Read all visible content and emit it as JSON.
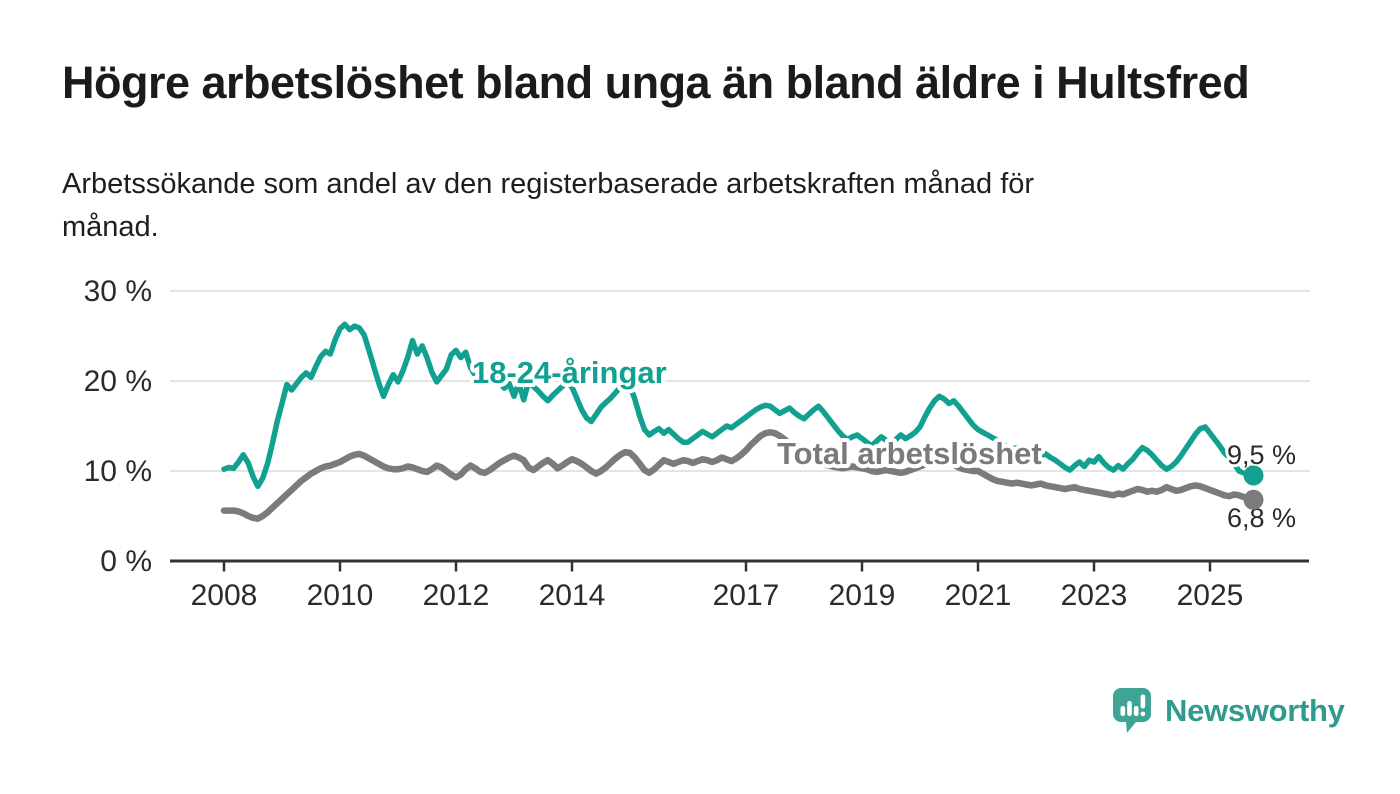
{
  "page": {
    "title": "Högre arbetslöshet bland unga än bland äldre i Hultsfred",
    "subtitle_line1": "Arbetssökande som andel av den registerbaserade arbetskraften månad för",
    "subtitle_line2": "månad."
  },
  "branding": {
    "wordmark": "Newsworthy",
    "icon": "bar-chart-speech-bubble",
    "icon_color": "#3da496",
    "wordmark_color": "#2f9b8e"
  },
  "colors": {
    "accent_teal": "#12a191",
    "total_gray": "#7b7b7b",
    "total_label_gray": "#7a7a7a",
    "axis": "#333333",
    "grid": "#dcdcdc",
    "text_dark": "#2b2b2b"
  },
  "chart_data": {
    "type": "line",
    "unit": "%",
    "x_start": {
      "year": 2008,
      "month": 1
    },
    "x_end": {
      "year": 2025,
      "month": 10
    },
    "points_per_year": 12,
    "x_tick_years": [
      2008,
      2010,
      2012,
      2014,
      2017,
      2019,
      2021,
      2023,
      2025
    ],
    "y_ticks": [
      {
        "value": 30,
        "label": "30 %"
      },
      {
        "value": 20,
        "label": "20 %"
      },
      {
        "value": 10,
        "label": "10 %"
      },
      {
        "value": 0,
        "label": "0 %"
      }
    ],
    "ylim": [
      0,
      30
    ],
    "grid": "horizontal",
    "legend_position": "inline-labels",
    "series": [
      {
        "slug": "young",
        "name": "18-24-åringar",
        "color": "#12a191",
        "end_label": "9,5 %",
        "end_value": 9.5,
        "values": [
          10.2,
          10.4,
          10.3,
          11.0,
          11.8,
          10.9,
          9.4,
          8.3,
          9.2,
          10.8,
          13.0,
          15.5,
          17.5,
          19.6,
          19.0,
          19.7,
          20.4,
          20.9,
          20.4,
          21.6,
          22.7,
          23.3,
          23.0,
          24.6,
          25.8,
          26.3,
          25.7,
          26.1,
          25.9,
          25.1,
          23.4,
          21.6,
          19.8,
          18.3,
          19.6,
          20.7,
          19.9,
          21.1,
          22.6,
          24.5,
          23.0,
          23.9,
          22.6,
          21.0,
          19.9,
          20.6,
          21.3,
          22.9,
          23.4,
          22.6,
          23.2,
          21.5,
          20.6,
          19.8,
          20.5,
          21.3,
          20.6,
          19.9,
          19.2,
          19.7,
          18.3,
          19.8,
          17.9,
          19.9,
          19.4,
          18.9,
          18.3,
          17.8,
          18.4,
          18.9,
          19.4,
          19.9,
          19.3,
          18.1,
          16.8,
          15.9,
          15.5,
          16.3,
          17.1,
          17.6,
          18.1,
          18.7,
          19.3,
          19.7,
          19.4,
          18.0,
          16.1,
          14.6,
          14.0,
          14.4,
          14.7,
          14.2,
          14.6,
          14.1,
          13.6,
          13.2,
          13.2,
          13.6,
          14.0,
          14.4,
          14.1,
          13.8,
          14.2,
          14.6,
          15.0,
          14.8,
          15.2,
          15.6,
          16.0,
          16.4,
          16.8,
          17.1,
          17.3,
          17.2,
          16.8,
          16.4,
          16.7,
          17.0,
          16.5,
          16.1,
          15.8,
          16.3,
          16.8,
          17.2,
          16.6,
          15.9,
          15.2,
          14.5,
          13.9,
          13.5,
          13.8,
          14.0,
          13.6,
          13.2,
          12.8,
          13.3,
          13.8,
          13.4,
          13.0,
          13.5,
          14.0,
          13.6,
          13.9,
          14.3,
          14.9,
          16.0,
          17.0,
          17.8,
          18.3,
          18.0,
          17.5,
          17.8,
          17.2,
          16.5,
          15.8,
          15.1,
          14.6,
          14.3,
          14.0,
          13.7,
          13.4,
          13.0,
          12.7,
          12.4,
          12.6,
          12.3,
          12.0,
          12.2,
          12.0,
          11.7,
          11.9,
          11.5,
          11.2,
          10.8,
          10.4,
          10.1,
          10.6,
          11.0,
          10.5,
          11.2,
          11.0,
          11.6,
          10.9,
          10.4,
          10.1,
          10.6,
          10.2,
          10.8,
          11.3,
          12.0,
          12.6,
          12.3,
          11.8,
          11.2,
          10.6,
          10.2,
          10.5,
          11.0,
          11.7,
          12.5,
          13.3,
          14.1,
          14.7,
          14.9,
          14.2,
          13.5,
          12.8,
          12.0,
          11.5,
          10.8,
          10.0,
          9.8,
          10.4,
          9.5
        ]
      },
      {
        "slug": "total",
        "name": "Total arbetslöshet",
        "color": "#7b7b7b",
        "end_label": "6,8 %",
        "end_value": 6.8,
        "values": [
          5.6,
          5.6,
          5.6,
          5.5,
          5.3,
          5.0,
          4.8,
          4.7,
          5.0,
          5.4,
          5.9,
          6.4,
          6.9,
          7.4,
          7.9,
          8.4,
          8.9,
          9.3,
          9.7,
          10.0,
          10.3,
          10.5,
          10.6,
          10.8,
          11.0,
          11.3,
          11.6,
          11.8,
          11.9,
          11.7,
          11.4,
          11.1,
          10.8,
          10.5,
          10.3,
          10.2,
          10.2,
          10.3,
          10.5,
          10.4,
          10.2,
          10.0,
          9.9,
          10.2,
          10.6,
          10.4,
          10.0,
          9.6,
          9.3,
          9.6,
          10.2,
          10.6,
          10.3,
          9.9,
          9.8,
          10.1,
          10.5,
          10.9,
          11.2,
          11.5,
          11.7,
          11.5,
          11.2,
          10.4,
          10.1,
          10.5,
          10.9,
          11.2,
          10.8,
          10.3,
          10.6,
          11.0,
          11.3,
          11.1,
          10.8,
          10.4,
          10.0,
          9.7,
          10.0,
          10.4,
          10.9,
          11.4,
          11.8,
          12.1,
          12.0,
          11.5,
          10.8,
          10.1,
          9.8,
          10.2,
          10.7,
          11.2,
          11.0,
          10.8,
          11.0,
          11.2,
          11.1,
          10.9,
          11.1,
          11.3,
          11.2,
          11.0,
          11.2,
          11.5,
          11.3,
          11.1,
          11.4,
          11.8,
          12.3,
          12.9,
          13.4,
          13.9,
          14.2,
          14.3,
          14.2,
          13.9,
          13.5,
          13.0,
          12.5,
          12.1,
          11.8,
          11.5,
          11.2,
          11.0,
          10.8,
          10.6,
          10.5,
          10.4,
          10.3,
          10.4,
          10.5,
          10.4,
          10.3,
          10.2,
          10.0,
          9.9,
          10.0,
          10.1,
          10.0,
          9.9,
          9.8,
          9.9,
          10.1,
          10.3,
          10.5,
          10.7,
          10.9,
          11.0,
          11.1,
          11.0,
          10.9,
          10.7,
          10.4,
          10.2,
          10.1,
          10.0,
          10.0,
          9.7,
          9.4,
          9.1,
          8.9,
          8.8,
          8.7,
          8.6,
          8.7,
          8.6,
          8.5,
          8.4,
          8.5,
          8.6,
          8.4,
          8.3,
          8.2,
          8.1,
          8.0,
          8.1,
          8.2,
          8.0,
          7.9,
          7.8,
          7.7,
          7.6,
          7.5,
          7.4,
          7.3,
          7.5,
          7.4,
          7.6,
          7.8,
          8.0,
          7.9,
          7.7,
          7.8,
          7.7,
          7.9,
          8.2,
          8.0,
          7.8,
          7.9,
          8.1,
          8.3,
          8.4,
          8.3,
          8.1,
          7.9,
          7.7,
          7.5,
          7.3,
          7.2,
          7.4,
          7.3,
          7.1,
          6.9,
          6.8
        ]
      }
    ]
  }
}
